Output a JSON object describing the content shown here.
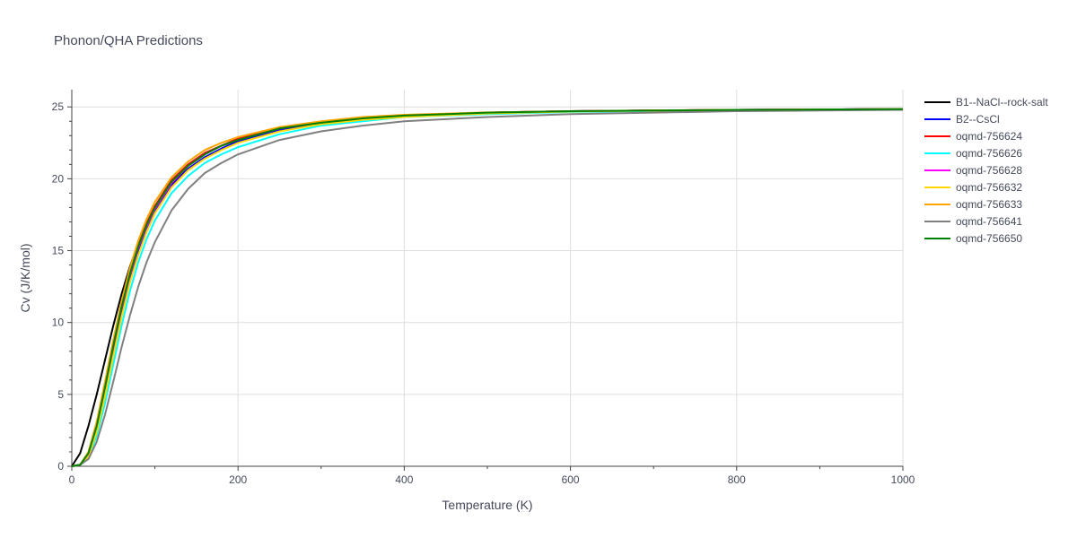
{
  "chart_data": {
    "type": "line",
    "title": "Phonon/QHA Predictions",
    "xlabel": "Temperature (K)",
    "ylabel": "Cv (J/K/mol)",
    "xlim": [
      0,
      1000
    ],
    "ylim": [
      0,
      26.2
    ],
    "xticks": [
      0,
      200,
      400,
      600,
      800,
      1000
    ],
    "xtick_labels": [
      "0",
      "200",
      "400",
      "600",
      "800",
      "1000"
    ],
    "yticks": [
      0,
      5,
      10,
      15,
      20,
      25
    ],
    "ytick_labels": [
      "0",
      "5",
      "10",
      "15",
      "20",
      "25"
    ],
    "grid": true,
    "legend_position": "right",
    "series": [
      {
        "name": "B1--NaCl--rock-salt",
        "color": "#000000",
        "x": [
          0,
          10,
          20,
          30,
          40,
          50,
          60,
          70,
          80,
          90,
          100,
          120,
          140,
          160,
          180,
          200,
          250,
          300,
          350,
          400,
          500,
          600,
          700,
          800,
          900,
          1000
        ],
        "y": [
          0,
          0.9,
          2.8,
          5.0,
          7.4,
          9.8,
          12.0,
          13.9,
          15.5,
          16.8,
          17.9,
          19.6,
          20.7,
          21.5,
          22.1,
          22.6,
          23.4,
          23.9,
          24.2,
          24.4,
          24.6,
          24.7,
          24.75,
          24.8,
          24.82,
          24.85
        ]
      },
      {
        "name": "B2--CsCl",
        "color": "#0000ff",
        "x": [
          0,
          10,
          20,
          30,
          40,
          50,
          60,
          70,
          80,
          90,
          100,
          120,
          140,
          160,
          180,
          200,
          250,
          300,
          350,
          400,
          500,
          600,
          700,
          800,
          900,
          1000
        ],
        "y": [
          0,
          0.1,
          0.8,
          2.6,
          5.2,
          8.0,
          10.7,
          13.0,
          14.9,
          16.4,
          17.7,
          19.5,
          20.7,
          21.5,
          22.1,
          22.6,
          23.4,
          23.9,
          24.2,
          24.4,
          24.6,
          24.7,
          24.75,
          24.8,
          24.82,
          24.85
        ]
      },
      {
        "name": "oqmd-756624",
        "color": "#ff0000",
        "x": [
          0,
          10,
          20,
          30,
          40,
          50,
          60,
          70,
          80,
          90,
          100,
          120,
          140,
          160,
          180,
          200,
          250,
          300,
          350,
          400,
          500,
          600,
          700,
          800,
          900,
          1000
        ],
        "y": [
          0,
          0.1,
          0.9,
          2.9,
          5.6,
          8.5,
          11.2,
          13.5,
          15.4,
          16.9,
          18.1,
          19.9,
          21.0,
          21.8,
          22.3,
          22.8,
          23.5,
          23.9,
          24.2,
          24.4,
          24.6,
          24.7,
          24.75,
          24.8,
          24.82,
          24.85
        ]
      },
      {
        "name": "oqmd-756626",
        "color": "#00ffff",
        "x": [
          0,
          10,
          20,
          30,
          40,
          50,
          60,
          70,
          80,
          90,
          100,
          120,
          140,
          160,
          180,
          200,
          250,
          300,
          350,
          400,
          500,
          600,
          700,
          800,
          900,
          1000
        ],
        "y": [
          0,
          0.1,
          0.6,
          2.1,
          4.4,
          7.1,
          9.8,
          12.2,
          14.2,
          15.8,
          17.1,
          19.0,
          20.2,
          21.1,
          21.7,
          22.2,
          23.1,
          23.7,
          24.0,
          24.3,
          24.5,
          24.65,
          24.72,
          24.78,
          24.8,
          24.83
        ]
      },
      {
        "name": "oqmd-756628",
        "color": "#ff00ff",
        "x": [
          0,
          10,
          20,
          30,
          40,
          50,
          60,
          70,
          80,
          90,
          100,
          120,
          140,
          160,
          180,
          200,
          250,
          300,
          350,
          400,
          500,
          600,
          700,
          800,
          900,
          1000
        ],
        "y": [
          0,
          0.1,
          0.8,
          2.7,
          5.4,
          8.3,
          11.0,
          13.3,
          15.2,
          16.7,
          17.9,
          19.7,
          20.9,
          21.7,
          22.3,
          22.7,
          23.5,
          23.9,
          24.2,
          24.4,
          24.6,
          24.7,
          24.75,
          24.8,
          24.82,
          24.85
        ]
      },
      {
        "name": "oqmd-756632",
        "color": "#ffd700",
        "x": [
          0,
          10,
          20,
          30,
          40,
          50,
          60,
          70,
          80,
          90,
          100,
          120,
          140,
          160,
          180,
          200,
          250,
          300,
          350,
          400,
          500,
          600,
          700,
          800,
          900,
          1000
        ],
        "y": [
          0,
          0.1,
          0.7,
          2.4,
          4.9,
          7.7,
          10.4,
          12.8,
          14.7,
          16.3,
          17.6,
          19.4,
          20.6,
          21.4,
          22.0,
          22.5,
          23.3,
          23.8,
          24.1,
          24.3,
          24.55,
          24.68,
          24.74,
          24.79,
          24.81,
          24.84
        ]
      },
      {
        "name": "oqmd-756633",
        "color": "#ffa500",
        "x": [
          0,
          10,
          20,
          30,
          40,
          50,
          60,
          70,
          80,
          90,
          100,
          120,
          140,
          160,
          180,
          200,
          250,
          300,
          350,
          400,
          500,
          600,
          700,
          800,
          900,
          1000
        ],
        "y": [
          0,
          0.1,
          1.0,
          3.1,
          5.9,
          8.8,
          11.5,
          13.8,
          15.7,
          17.2,
          18.4,
          20.1,
          21.2,
          22.0,
          22.5,
          22.9,
          23.6,
          24.0,
          24.3,
          24.45,
          24.62,
          24.7,
          24.76,
          24.8,
          24.82,
          24.85
        ]
      },
      {
        "name": "oqmd-756641",
        "color": "#808080",
        "x": [
          0,
          10,
          20,
          30,
          40,
          50,
          60,
          70,
          80,
          90,
          100,
          120,
          140,
          160,
          180,
          200,
          250,
          300,
          350,
          400,
          500,
          600,
          700,
          800,
          900,
          1000
        ],
        "y": [
          0,
          0.1,
          0.5,
          1.7,
          3.6,
          5.9,
          8.3,
          10.5,
          12.5,
          14.2,
          15.6,
          17.8,
          19.3,
          20.4,
          21.1,
          21.7,
          22.7,
          23.3,
          23.7,
          24.0,
          24.3,
          24.5,
          24.6,
          24.7,
          24.75,
          24.8
        ]
      },
      {
        "name": "oqmd-756650",
        "color": "#008000",
        "x": [
          0,
          10,
          20,
          30,
          40,
          50,
          60,
          70,
          80,
          90,
          100,
          120,
          140,
          160,
          180,
          200,
          250,
          300,
          350,
          400,
          500,
          600,
          700,
          800,
          900,
          1000
        ],
        "y": [
          0,
          0.1,
          0.9,
          2.8,
          5.5,
          8.4,
          11.1,
          13.4,
          15.3,
          16.8,
          18.0,
          19.8,
          20.9,
          21.7,
          22.3,
          22.7,
          23.5,
          23.9,
          24.2,
          24.4,
          24.6,
          24.7,
          24.75,
          24.8,
          24.82,
          24.85
        ]
      }
    ]
  }
}
